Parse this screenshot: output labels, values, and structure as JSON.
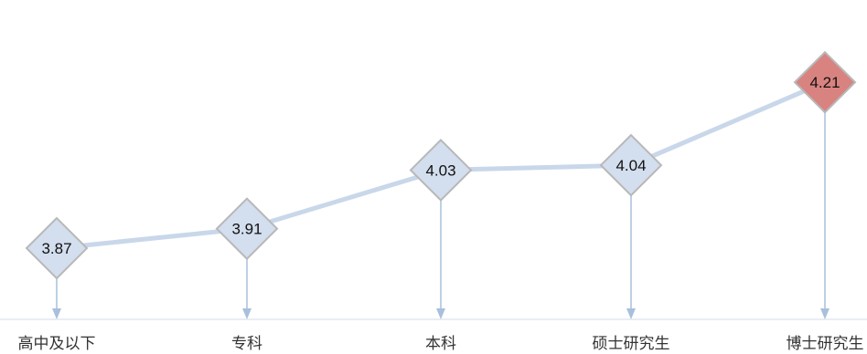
{
  "chart_data": {
    "type": "line",
    "title": "",
    "xlabel": "",
    "ylabel": "",
    "categories": [
      "高中及以下",
      "专科",
      "本科",
      "硕士研究生",
      "博士研究生"
    ],
    "series": [
      {
        "values": [
          3.87,
          3.91,
          4.03,
          4.04,
          4.21
        ],
        "data_labels": [
          "3.87",
          "3.91",
          "4.03",
          "4.04",
          "4.21"
        ]
      }
    ],
    "ylim": [
      3.5,
      4.3
    ],
    "grid": false,
    "legend": "none",
    "colors": {
      "line": "#c9d7ea",
      "marker": "#d3deee",
      "marker_highlight": "#d98380",
      "marker_border": "#b8b8b8",
      "drop_line": "#a9c0dc"
    },
    "highlight_index": 4
  }
}
